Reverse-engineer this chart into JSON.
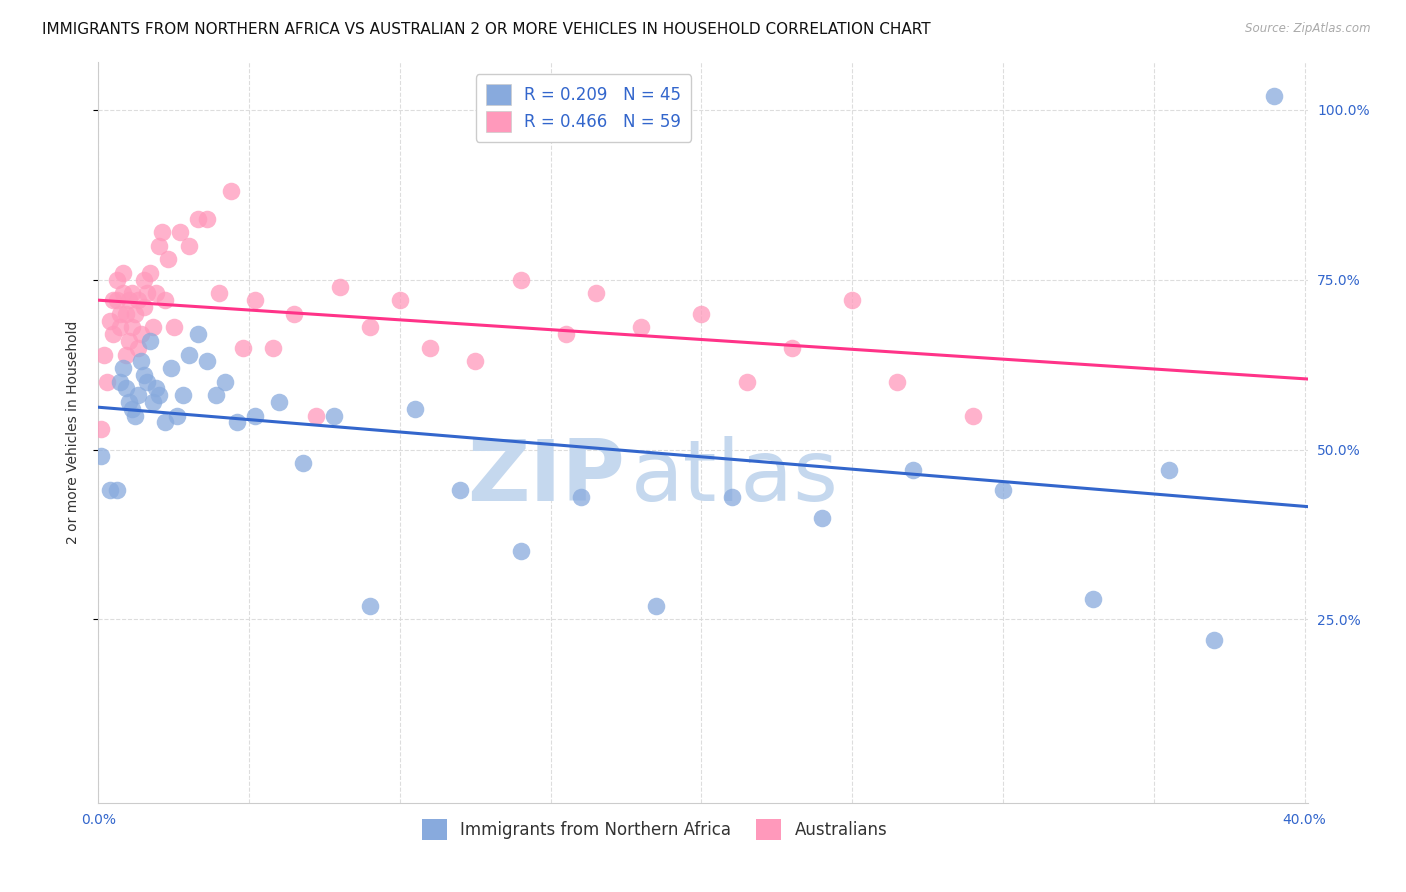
{
  "title": "IMMIGRANTS FROM NORTHERN AFRICA VS AUSTRALIAN 2 OR MORE VEHICLES IN HOUSEHOLD CORRELATION CHART",
  "source": "Source: ZipAtlas.com",
  "ylabel": "2 or more Vehicles in Household",
  "legend1_label": "Immigrants from Northern Africa",
  "legend2_label": "Australians",
  "R1": 0.209,
  "N1": 45,
  "R2": 0.466,
  "N2": 59,
  "color1": "#88AADD",
  "color2": "#FF99BB",
  "trendline1_color": "#3366CC",
  "trendline2_color": "#FF3388",
  "xmin": 0.0,
  "xmax": 0.401,
  "ymin": -0.02,
  "ymax": 1.07,
  "xticks": [
    0.0,
    0.05,
    0.1,
    0.15,
    0.2,
    0.25,
    0.3,
    0.35,
    0.4
  ],
  "yticks": [
    0.25,
    0.5,
    0.75,
    1.0
  ],
  "ytick_labels_right": [
    "25.0%",
    "50.0%",
    "75.0%",
    "100.0%"
  ],
  "blue_x": [
    0.001,
    0.004,
    0.006,
    0.007,
    0.008,
    0.009,
    0.01,
    0.011,
    0.012,
    0.013,
    0.014,
    0.015,
    0.016,
    0.017,
    0.018,
    0.019,
    0.02,
    0.022,
    0.024,
    0.026,
    0.028,
    0.03,
    0.033,
    0.036,
    0.039,
    0.042,
    0.046,
    0.052,
    0.06,
    0.068,
    0.078,
    0.09,
    0.105,
    0.12,
    0.14,
    0.16,
    0.185,
    0.21,
    0.24,
    0.27,
    0.3,
    0.33,
    0.355,
    0.37,
    0.39
  ],
  "blue_y": [
    0.49,
    0.44,
    0.44,
    0.6,
    0.62,
    0.59,
    0.57,
    0.56,
    0.55,
    0.58,
    0.63,
    0.61,
    0.6,
    0.66,
    0.57,
    0.59,
    0.58,
    0.54,
    0.62,
    0.55,
    0.58,
    0.64,
    0.67,
    0.63,
    0.58,
    0.6,
    0.54,
    0.55,
    0.57,
    0.48,
    0.55,
    0.27,
    0.56,
    0.44,
    0.35,
    0.43,
    0.27,
    0.43,
    0.4,
    0.47,
    0.44,
    0.28,
    0.47,
    0.22,
    1.02
  ],
  "pink_x": [
    0.001,
    0.002,
    0.003,
    0.004,
    0.005,
    0.005,
    0.006,
    0.006,
    0.007,
    0.007,
    0.008,
    0.008,
    0.009,
    0.009,
    0.01,
    0.01,
    0.011,
    0.011,
    0.012,
    0.013,
    0.013,
    0.014,
    0.015,
    0.015,
    0.016,
    0.017,
    0.018,
    0.019,
    0.02,
    0.021,
    0.022,
    0.023,
    0.025,
    0.027,
    0.03,
    0.033,
    0.036,
    0.04,
    0.044,
    0.048,
    0.052,
    0.058,
    0.065,
    0.072,
    0.08,
    0.09,
    0.1,
    0.11,
    0.125,
    0.14,
    0.155,
    0.165,
    0.18,
    0.2,
    0.215,
    0.23,
    0.25,
    0.265,
    0.29
  ],
  "pink_y": [
    0.53,
    0.64,
    0.6,
    0.69,
    0.67,
    0.72,
    0.75,
    0.72,
    0.7,
    0.68,
    0.73,
    0.76,
    0.7,
    0.64,
    0.72,
    0.66,
    0.73,
    0.68,
    0.7,
    0.65,
    0.72,
    0.67,
    0.75,
    0.71,
    0.73,
    0.76,
    0.68,
    0.73,
    0.8,
    0.82,
    0.72,
    0.78,
    0.68,
    0.82,
    0.8,
    0.84,
    0.84,
    0.73,
    0.88,
    0.65,
    0.72,
    0.65,
    0.7,
    0.55,
    0.74,
    0.68,
    0.72,
    0.65,
    0.63,
    0.75,
    0.67,
    0.73,
    0.68,
    0.7,
    0.6,
    0.65,
    0.72,
    0.6,
    0.55
  ],
  "watermark_zip": "ZIP",
  "watermark_atlas": "atlas",
  "watermark_color": "#C5D8EE",
  "bg_color": "#FFFFFF",
  "grid_color": "#DDDDDD",
  "title_fontsize": 11,
  "ylabel_fontsize": 10,
  "tick_fontsize": 10,
  "legend_fontsize": 12,
  "scatter_size": 160,
  "scatter_alpha": 0.75
}
